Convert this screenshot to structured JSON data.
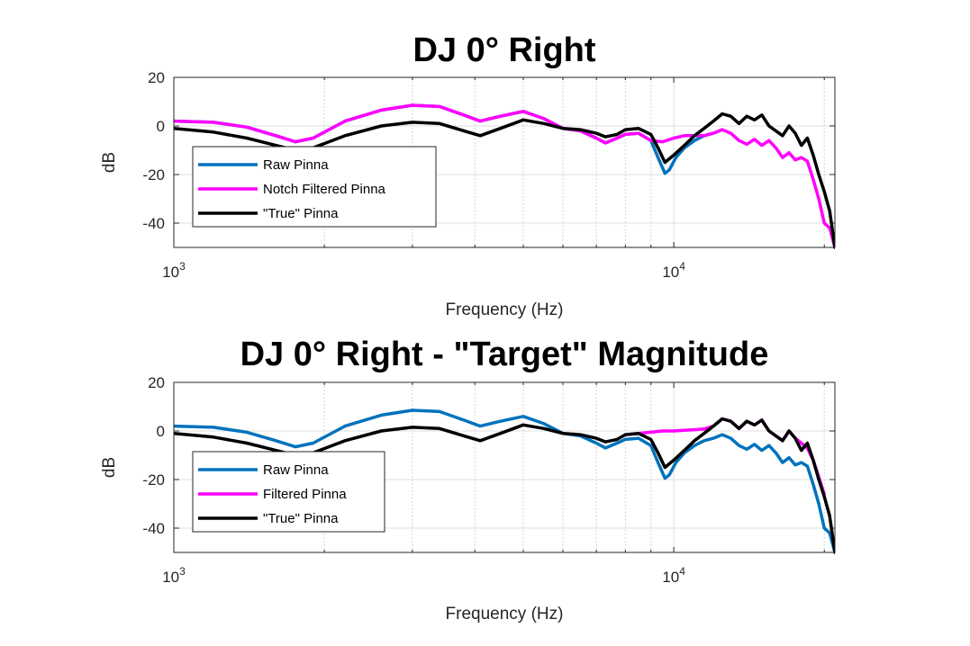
{
  "chart_data": [
    {
      "type": "line",
      "title": "DJ 0° Right",
      "xlabel": "Frequency (Hz)",
      "ylabel": "dB",
      "xscale": "log",
      "xlim": [
        1000,
        21000
      ],
      "ylim": [
        -50,
        20
      ],
      "yticks": [
        20,
        0,
        -20,
        -40
      ],
      "xticks": [
        {
          "base": "10",
          "exp": "3"
        },
        {
          "base": "10",
          "exp": "4"
        }
      ],
      "grid": true,
      "legend_position": "lower-left",
      "series": [
        {
          "name": "Raw Pinna",
          "color": "#0072BD",
          "x": [
            1000,
            1200,
            1400,
            1600,
            1750,
            1900,
            2200,
            2600,
            3000,
            3400,
            3800,
            4100,
            4500,
            5000,
            5500,
            6000,
            6500,
            7000,
            7300,
            7700,
            8000,
            8500,
            9000,
            9300,
            9600,
            9800,
            10100,
            10500,
            11000,
            11500,
            12000
          ],
          "y": [
            2,
            1.5,
            -0.5,
            -4,
            -6.5,
            -5,
            2,
            6.5,
            8.5,
            8,
            4.5,
            2,
            4,
            6,
            3,
            -1,
            -2,
            -5,
            -7,
            -5,
            -3.5,
            -3,
            -6,
            -13,
            -19.5,
            -18,
            -13,
            -9,
            -6,
            -4,
            -3
          ]
        },
        {
          "name": "Notch Filtered Pinna",
          "color": "#FF00FF",
          "x": [
            1000,
            1200,
            1400,
            1600,
            1750,
            1900,
            2200,
            2600,
            3000,
            3400,
            3800,
            4100,
            4500,
            5000,
            5500,
            6000,
            6500,
            7000,
            7300,
            7700,
            8000,
            8500,
            9000,
            9500,
            10000,
            10500,
            11000,
            11500,
            12000,
            12500,
            13000,
            13500,
            14000,
            14500,
            15000,
            15500,
            16000,
            16500,
            17000,
            17500,
            18000,
            18500,
            19000,
            19500,
            20000,
            20500,
            21000
          ],
          "y": [
            2,
            1.5,
            -0.5,
            -4,
            -6.5,
            -5,
            2,
            6.5,
            8.5,
            8,
            4.5,
            2,
            4,
            6,
            3,
            -1,
            -2,
            -5,
            -7,
            -5,
            -3.5,
            -3,
            -6,
            -6.5,
            -5,
            -4,
            -4,
            -4,
            -3,
            -1.5,
            -3,
            -6,
            -7.5,
            -5.5,
            -8,
            -6,
            -9,
            -13,
            -11,
            -14,
            -13,
            -14.5,
            -22,
            -30,
            -40,
            -42,
            -50
          ]
        },
        {
          "name": "\"True\" Pinna",
          "color": "#000000",
          "x": [
            1000,
            1200,
            1400,
            1600,
            1750,
            1900,
            2200,
            2600,
            3000,
            3400,
            3800,
            4100,
            4500,
            5000,
            5500,
            6000,
            6500,
            7000,
            7300,
            7700,
            8000,
            8500,
            9000,
            9300,
            9600,
            10000,
            10500,
            11000,
            11500,
            12000,
            12500,
            13000,
            13500,
            14000,
            14500,
            15000,
            15500,
            16000,
            16500,
            17000,
            17500,
            18000,
            18500,
            19000,
            19500,
            20000,
            20500,
            21000
          ],
          "y": [
            -1,
            -2.5,
            -5,
            -8,
            -10,
            -9,
            -4,
            0,
            1.5,
            1,
            -2,
            -4,
            -1,
            2.5,
            1,
            -1,
            -1.5,
            -3,
            -4.5,
            -3.5,
            -1.5,
            -1,
            -3.5,
            -9,
            -15,
            -12,
            -8,
            -4,
            -1,
            2,
            5,
            4,
            1,
            4,
            2.5,
            4.5,
            0,
            -2,
            -4,
            0,
            -3,
            -8,
            -5,
            -12,
            -20,
            -27,
            -35,
            -50
          ]
        }
      ]
    },
    {
      "type": "line",
      "title": "DJ 0° Right  - \"Target\" Magnitude",
      "xlabel": "Frequency (Hz)",
      "ylabel": "dB",
      "xscale": "log",
      "xlim": [
        1000,
        21000
      ],
      "ylim": [
        -50,
        20
      ],
      "yticks": [
        20,
        0,
        -20,
        -40
      ],
      "xticks": [
        {
          "base": "10",
          "exp": "3"
        },
        {
          "base": "10",
          "exp": "4"
        }
      ],
      "grid": true,
      "legend_position": "lower-left",
      "series": [
        {
          "name": "Raw Pinna",
          "color": "#0072BD",
          "x": [
            1000,
            1200,
            1400,
            1600,
            1750,
            1900,
            2200,
            2600,
            3000,
            3400,
            3800,
            4100,
            4500,
            5000,
            5500,
            6000,
            6500,
            7000,
            7300,
            7700,
            8000,
            8500,
            9000,
            9300,
            9600,
            9800,
            10100,
            10500,
            11000,
            11500,
            12000,
            12500,
            13000,
            13500,
            14000,
            14500,
            15000,
            15500,
            16000,
            16500,
            17000,
            17500,
            18000,
            18500,
            19000,
            19500,
            20000,
            20500,
            21000
          ],
          "y": [
            2,
            1.5,
            -0.5,
            -4,
            -6.5,
            -5,
            2,
            6.5,
            8.5,
            8,
            4.5,
            2,
            4,
            6,
            3,
            -1,
            -2,
            -5,
            -7,
            -5,
            -3.5,
            -3,
            -6,
            -13,
            -19.5,
            -18,
            -13,
            -9,
            -6,
            -4,
            -3,
            -1.5,
            -3,
            -6,
            -7.5,
            -5.5,
            -8,
            -6,
            -9,
            -13,
            -11,
            -14,
            -13,
            -14.5,
            -22,
            -30,
            -40,
            -42,
            -50
          ]
        },
        {
          "name": "Filtered Pinna",
          "color": "#FF00FF",
          "x": [
            8000,
            8500,
            9000,
            9500,
            10000,
            10500,
            11000,
            11500,
            12000,
            12500,
            13000,
            13500,
            14000,
            14500,
            15000,
            15500,
            16000,
            16500,
            17000,
            17500,
            18000,
            18500,
            19000,
            19500,
            20000
          ],
          "y": [
            -1.5,
            -1,
            -0.5,
            0,
            0,
            0.3,
            0.5,
            0.8,
            2,
            5,
            4,
            1,
            4,
            2.5,
            4.5,
            0,
            -2,
            -4,
            0,
            -3,
            -5,
            -7,
            -12,
            -19,
            -26
          ]
        },
        {
          "name": "\"True\" Pinna",
          "color": "#000000",
          "x": [
            1000,
            1200,
            1400,
            1600,
            1750,
            1900,
            2200,
            2600,
            3000,
            3400,
            3800,
            4100,
            4500,
            5000,
            5500,
            6000,
            6500,
            7000,
            7300,
            7700,
            8000,
            8500,
            9000,
            9300,
            9600,
            10000,
            10500,
            11000,
            11500,
            12000,
            12500,
            13000,
            13500,
            14000,
            14500,
            15000,
            15500,
            16000,
            16500,
            17000,
            17500,
            18000,
            18500,
            19000,
            19500,
            20000,
            20500,
            21000
          ],
          "y": [
            -1,
            -2.5,
            -5,
            -8,
            -10,
            -9,
            -4,
            0,
            1.5,
            1,
            -2,
            -4,
            -1,
            2.5,
            1,
            -1,
            -1.5,
            -3,
            -4.5,
            -3.5,
            -1.5,
            -1,
            -3.5,
            -9,
            -15,
            -12,
            -8,
            -4,
            -1,
            2,
            5,
            4,
            1,
            4,
            2.5,
            4.5,
            0,
            -2,
            -4,
            0,
            -3,
            -8,
            -5,
            -12,
            -20,
            -27,
            -35,
            -50
          ]
        }
      ]
    }
  ]
}
